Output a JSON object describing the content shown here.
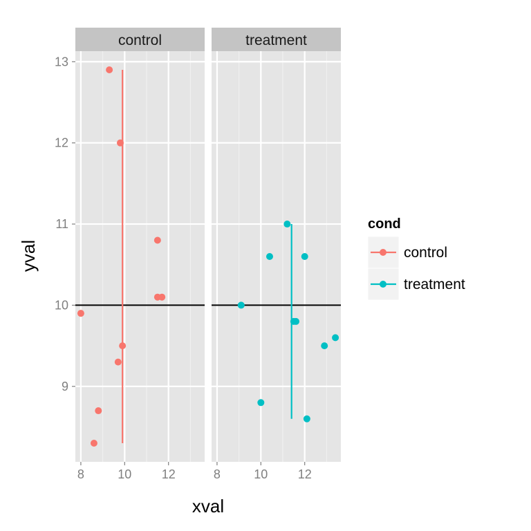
{
  "chart_data": {
    "type": "scatter",
    "xlabel": "xval",
    "ylabel": "yval",
    "xlim": [
      7.75,
      13.65
    ],
    "ylim": [
      8.07,
      13.13
    ],
    "x_ticks": [
      8,
      10,
      12
    ],
    "y_ticks": [
      9,
      10,
      11,
      12,
      13
    ],
    "reference_line_y": 10,
    "legend": {
      "title": "cond",
      "position": "right",
      "entries": [
        {
          "label": "control",
          "color": "#F8766D"
        },
        {
          "label": "treatment",
          "color": "#00BFC4"
        }
      ]
    },
    "panels": [
      {
        "label": "control",
        "color": "#F8766D",
        "mean_line": {
          "x": 9.9,
          "y_from": 8.3,
          "y_to": 12.9
        },
        "points": [
          {
            "x": 8.0,
            "y": 9.9
          },
          {
            "x": 8.6,
            "y": 8.3
          },
          {
            "x": 8.8,
            "y": 8.7
          },
          {
            "x": 9.3,
            "y": 12.9
          },
          {
            "x": 9.7,
            "y": 9.3
          },
          {
            "x": 9.8,
            "y": 12.0
          },
          {
            "x": 9.9,
            "y": 9.5
          },
          {
            "x": 11.5,
            "y": 10.8
          },
          {
            "x": 11.5,
            "y": 10.1
          },
          {
            "x": 11.7,
            "y": 10.1
          }
        ]
      },
      {
        "label": "treatment",
        "color": "#00BFC4",
        "mean_line": {
          "x": 11.4,
          "y_from": 8.6,
          "y_to": 11.0
        },
        "points": [
          {
            "x": 9.1,
            "y": 10.0
          },
          {
            "x": 10.0,
            "y": 8.8
          },
          {
            "x": 10.4,
            "y": 10.6
          },
          {
            "x": 11.2,
            "y": 11.0
          },
          {
            "x": 11.5,
            "y": 9.8
          },
          {
            "x": 11.6,
            "y": 9.8
          },
          {
            "x": 12.0,
            "y": 10.6
          },
          {
            "x": 12.1,
            "y": 8.6
          },
          {
            "x": 12.9,
            "y": 9.5
          },
          {
            "x": 13.4,
            "y": 9.6
          }
        ]
      }
    ]
  }
}
